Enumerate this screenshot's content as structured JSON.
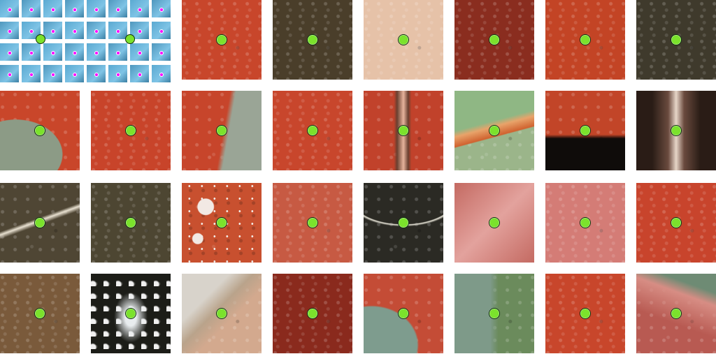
{
  "panels": {
    "overview_count": 2,
    "rows": [
      [
        "#c8462b",
        "#4a3e2a",
        "#e6c2a8",
        "#8a2d1f",
        "#c34425",
        "#3f3a2c"
      ],
      [
        "#c9462a",
        "#c8442a",
        "#c7452b",
        "#c8462c",
        "#c1422b",
        "#9bb58a",
        "#c24528",
        "#3a2a22"
      ],
      [
        "#4f4634",
        "#4d4632",
        "#c8502f",
        "#c75a43",
        "#2b2a24",
        "#d6857a",
        "#d47c76",
        "#c8442c"
      ],
      [
        "#7a5a3b",
        "#1c1d18",
        "#d3a98e",
        "#8a2a1d",
        "#c44c36",
        "#6b8b5c",
        "#c8462b",
        "#b85a52"
      ]
    ],
    "overlays": [
      [
        null,
        null,
        null,
        null,
        null,
        null
      ],
      [
        "gray-bl",
        null,
        "gray-r",
        null,
        "stripe",
        "green-t",
        "black-b",
        "dark-side"
      ],
      [
        "streak",
        null,
        "spots",
        null,
        "arc",
        "pink",
        null,
        null
      ],
      [
        null,
        "highlight",
        "light-tl",
        null,
        "teal-bl",
        "gray-l",
        null,
        "pink-tr"
      ]
    ]
  }
}
